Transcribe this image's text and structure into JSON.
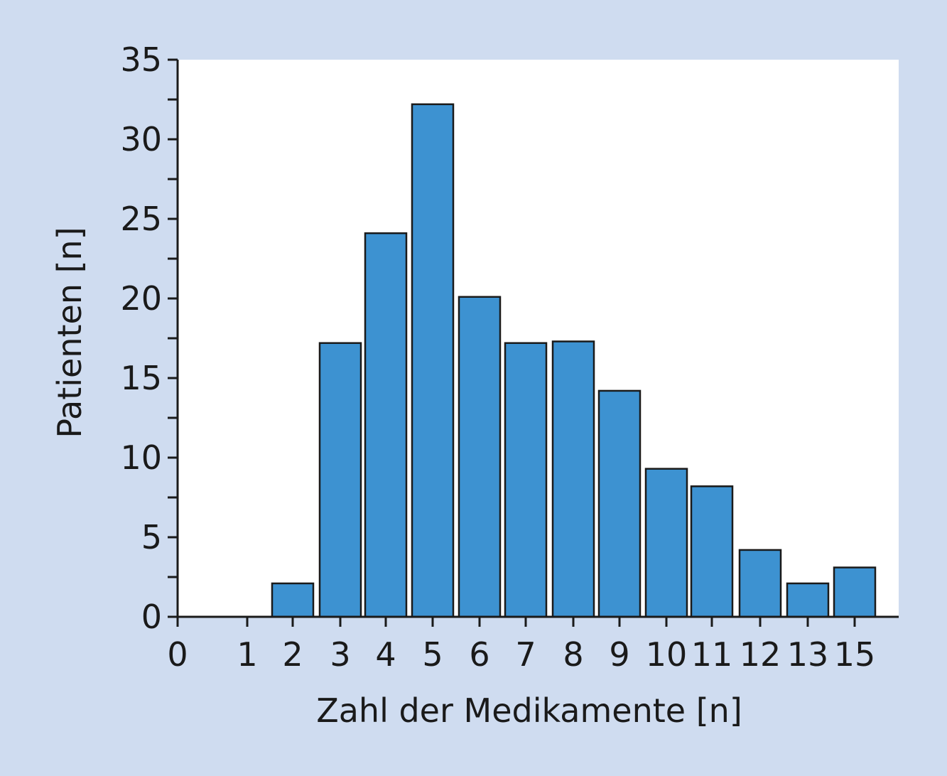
{
  "colors": {
    "background": "#cfdcf0",
    "plot_area": "#ffffff",
    "bar_fill": "#3d92d1",
    "bar_stroke": "#1a1a1a",
    "axis": "#1a1a1a"
  },
  "chart_data": {
    "type": "bar",
    "title": "",
    "xlabel": "Zahl der Medikamente [n]",
    "ylabel": "Patienten [n]",
    "ylim": [
      0,
      35
    ],
    "yticks": [
      "0",
      "5",
      "10",
      "15",
      "20",
      "25",
      "30",
      "35"
    ],
    "xtick_labels": [
      "0",
      "1",
      "2",
      "3",
      "4",
      "5",
      "6",
      "7",
      "8",
      "9",
      "10",
      "11",
      "12",
      "13",
      "15"
    ],
    "categories": [
      "2",
      "3",
      "4",
      "5",
      "6",
      "7",
      "8",
      "9",
      "10",
      "11",
      "12",
      "13",
      "15"
    ],
    "values": [
      2.1,
      17.2,
      24.1,
      32.2,
      20.1,
      17.2,
      17.3,
      14.2,
      9.3,
      8.2,
      4.2,
      2.1,
      3.1
    ],
    "grid": false,
    "legend": "none"
  }
}
